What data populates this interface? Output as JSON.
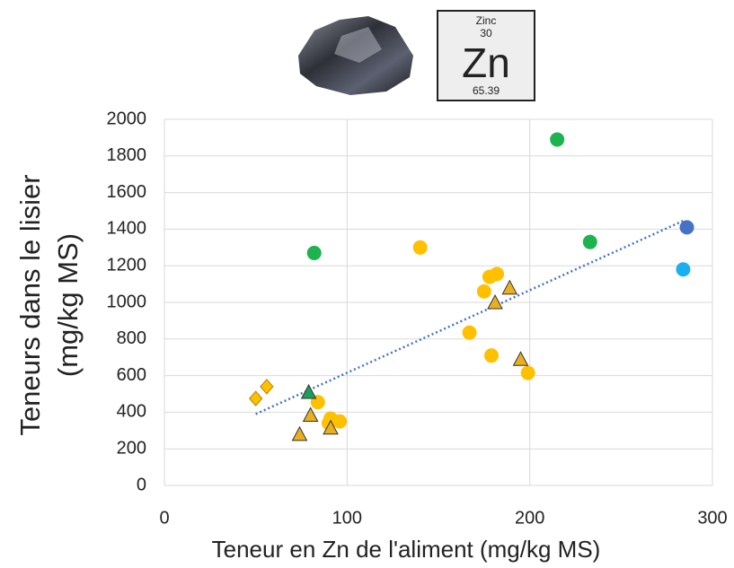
{
  "element": {
    "name": "Zinc",
    "number": "30",
    "symbol": "Zn",
    "mass": "65.39"
  },
  "chart_data": {
    "type": "scatter",
    "x_label": "Teneur en Zn de l'aliment (mg/kg MS)",
    "y_label": [
      "Teneurs  dans le lisier",
      "(mg/kg MS)"
    ],
    "xlim": [
      0,
      300
    ],
    "xticks": [
      0,
      100,
      200,
      300
    ],
    "ylim": [
      0,
      2000
    ],
    "yticks": [
      0,
      200,
      400,
      600,
      800,
      1000,
      1200,
      1400,
      1600,
      1800,
      2000
    ],
    "grid": true,
    "series": [
      {
        "marker": "circle",
        "color": "#1db34f",
        "x": [
          82,
          215,
          233
        ],
        "values": [
          1270,
          1890,
          1330
        ]
      },
      {
        "marker": "circle",
        "color": "#4472c4",
        "x": [
          286
        ],
        "values": [
          1410
        ]
      },
      {
        "marker": "circle",
        "color": "#1ab0f0",
        "x": [
          284
        ],
        "values": [
          1180
        ]
      },
      {
        "marker": "circle",
        "color": "#ffc000",
        "x": [
          140,
          178,
          182,
          175,
          167,
          179,
          199,
          84,
          90,
          91,
          96
        ],
        "values": [
          1300,
          1140,
          1155,
          1060,
          835,
          710,
          615,
          455,
          340,
          365,
          350
        ]
      },
      {
        "marker": "triangle",
        "color": "#e8b020",
        "x": [
          189,
          181,
          195,
          80,
          74,
          91
        ],
        "values": [
          1075,
          995,
          685,
          380,
          275,
          310
        ]
      },
      {
        "marker": "triangle",
        "color": "#1f9e5a",
        "x": [
          79
        ],
        "values": [
          505
        ]
      },
      {
        "marker": "diamond",
        "color": "#ffc000",
        "x": [
          50,
          56
        ],
        "values": [
          475,
          540
        ]
      }
    ],
    "trendline": {
      "color": "#4472c4",
      "x": [
        50,
        285
      ],
      "values": [
        390,
        1450
      ]
    }
  }
}
